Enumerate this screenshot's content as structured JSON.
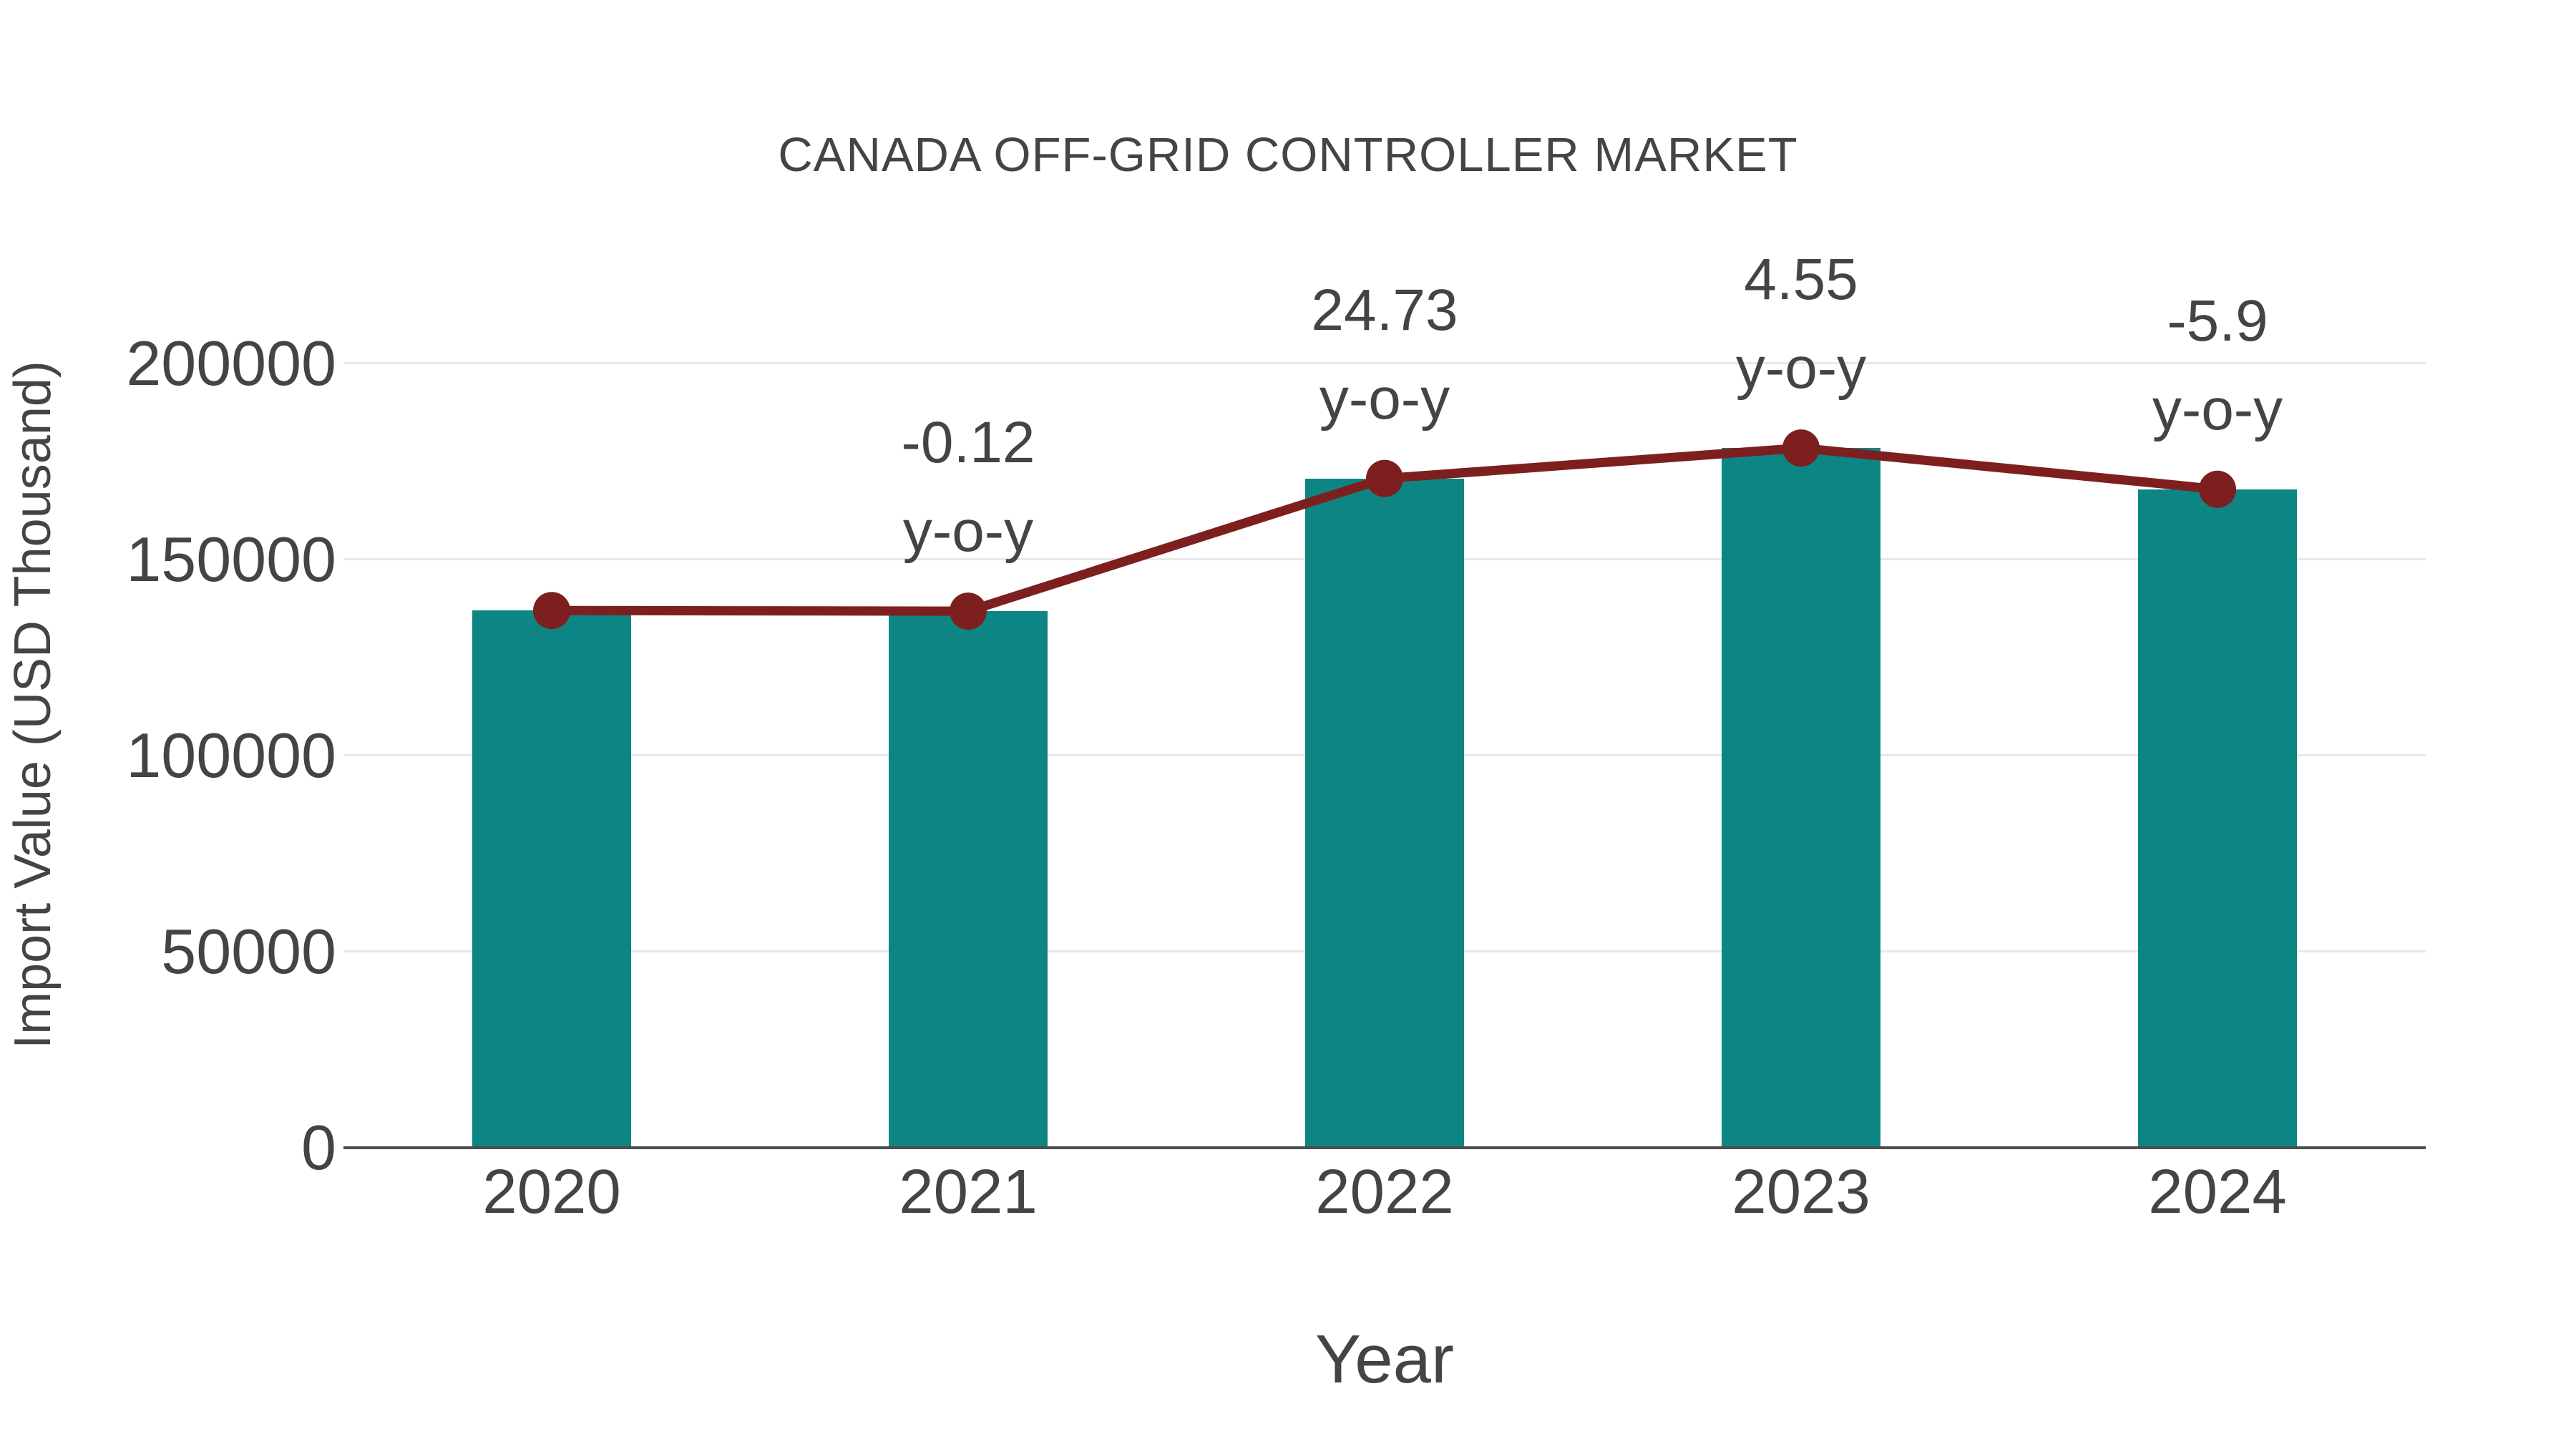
{
  "title": "CANADA OFF-GRID CONTROLLER MARKET",
  "colors": {
    "bar": "#0E8585",
    "line": "#7E1F1F",
    "text": "#444444",
    "gridline": "#e8e8e8",
    "axis_line": "#4d4d4d",
    "background": "#ffffff"
  },
  "chart_data": {
    "type": "bar",
    "title": "CANADA OFF-GRID CONTROLLER MARKET",
    "xlabel": "Year",
    "ylabel": "Import Value (USD Thousand)",
    "categories": [
      "2020",
      "2021",
      "2022",
      "2023",
      "2024"
    ],
    "series": [
      {
        "name": "Import Value (USD Thousand)",
        "type": "bar",
        "color": "#0E8585",
        "values": [
          137000,
          136840,
          170680,
          178450,
          167920
        ]
      },
      {
        "name": "y-o-y change (%)",
        "type": "line",
        "color": "#7E1F1F",
        "values": [
          null,
          -0.12,
          24.73,
          4.55,
          -5.9
        ]
      }
    ],
    "annotations": [
      {
        "category": "2021",
        "value_label": "-0.12",
        "suffix_label": "y-o-y"
      },
      {
        "category": "2022",
        "value_label": "24.73",
        "suffix_label": "y-o-y"
      },
      {
        "category": "2023",
        "value_label": "4.55",
        "suffix_label": "y-o-y"
      },
      {
        "category": "2024",
        "value_label": "-5.9",
        "suffix_label": "y-o-y"
      }
    ],
    "yticks": [
      0,
      50000,
      100000,
      150000,
      200000
    ],
    "ylim": [
      0,
      215000
    ],
    "grid": true,
    "legend_position": "none"
  }
}
